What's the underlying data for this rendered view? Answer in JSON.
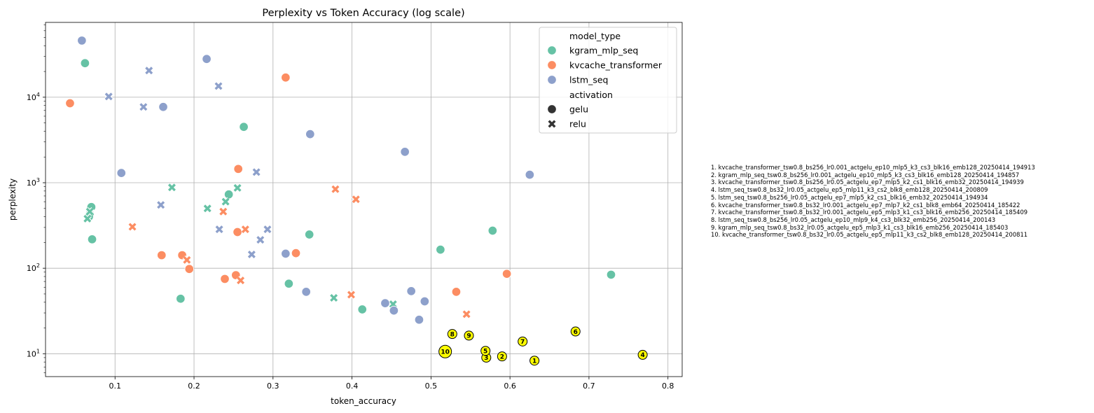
{
  "chart_data": {
    "type": "scatter",
    "title": "Perplexity vs Token Accuracy (log scale)",
    "xlabel": "token_accuracy",
    "ylabel": "perplexity",
    "xlim": [
      0.012,
      0.818
    ],
    "ylim": [
      5.4,
      75000
    ],
    "yscale": "log",
    "grid": true,
    "x_ticks": [
      {
        "v": 0.1,
        "label": "0.1"
      },
      {
        "v": 0.2,
        "label": "0.2"
      },
      {
        "v": 0.3,
        "label": "0.3"
      },
      {
        "v": 0.4,
        "label": "0.4"
      },
      {
        "v": 0.5,
        "label": "0.5"
      },
      {
        "v": 0.6,
        "label": "0.6"
      },
      {
        "v": 0.7,
        "label": "0.7"
      },
      {
        "v": 0.8,
        "label": "0.8"
      }
    ],
    "y_ticks": [
      {
        "v": 10,
        "base": "10",
        "exp": "1"
      },
      {
        "v": 100,
        "base": "10",
        "exp": "2"
      },
      {
        "v": 1000,
        "base": "10",
        "exp": "3"
      },
      {
        "v": 10000,
        "base": "10",
        "exp": "4"
      }
    ],
    "legend": {
      "placement": "top-right",
      "hue_title": "model_type",
      "style_title": "activation",
      "hue_entries": [
        {
          "label": "kgram_mlp_seq",
          "color": "#66c2a5"
        },
        {
          "label": "kvcache_transformer",
          "color": "#fc8d62"
        },
        {
          "label": "lstm_seq",
          "color": "#8da0cb"
        }
      ],
      "style_entries": [
        {
          "label": "gelu",
          "marker": "circle"
        },
        {
          "label": "relu",
          "marker": "x"
        }
      ]
    },
    "series": [
      {
        "model_type": "kgram_mlp_seq",
        "activation": "gelu",
        "color": "#66c2a5",
        "marker": "circle",
        "points": [
          [
            0.062,
            25000
          ],
          [
            0.07,
            520
          ],
          [
            0.068,
            430
          ],
          [
            0.067,
            400
          ],
          [
            0.071,
            218
          ],
          [
            0.183,
            44
          ],
          [
            0.244,
            730
          ],
          [
            0.263,
            4500
          ],
          [
            0.32,
            66
          ],
          [
            0.346,
            248
          ],
          [
            0.413,
            33
          ],
          [
            0.512,
            165
          ],
          [
            0.578,
            275
          ],
          [
            0.728,
            84
          ]
        ]
      },
      {
        "model_type": "kgram_mlp_seq",
        "activation": "relu",
        "color": "#66c2a5",
        "marker": "x",
        "points": [
          [
            0.065,
            380
          ],
          [
            0.068,
            460
          ],
          [
            0.172,
            880
          ],
          [
            0.217,
            500
          ],
          [
            0.24,
            600
          ],
          [
            0.255,
            870
          ],
          [
            0.377,
            45
          ],
          [
            0.452,
            38
          ]
        ]
      },
      {
        "model_type": "kvcache_transformer",
        "activation": "gelu",
        "color": "#fc8d62",
        "marker": "circle",
        "points": [
          [
            0.043,
            8500
          ],
          [
            0.159,
            142
          ],
          [
            0.185,
            142
          ],
          [
            0.194,
            98
          ],
          [
            0.239,
            75
          ],
          [
            0.253,
            83
          ],
          [
            0.255,
            265
          ],
          [
            0.256,
            1450
          ],
          [
            0.316,
            17000
          ],
          [
            0.329,
            150
          ],
          [
            0.532,
            53
          ],
          [
            0.596,
            86
          ]
        ]
      },
      {
        "model_type": "kvcache_transformer",
        "activation": "relu",
        "color": "#fc8d62",
        "marker": "x",
        "points": [
          [
            0.122,
            305
          ],
          [
            0.191,
            125
          ],
          [
            0.237,
            460
          ],
          [
            0.259,
            72
          ],
          [
            0.265,
            285
          ],
          [
            0.379,
            840
          ],
          [
            0.399,
            49
          ],
          [
            0.405,
            640
          ],
          [
            0.545,
            29
          ]
        ]
      },
      {
        "model_type": "lstm_seq",
        "activation": "gelu",
        "color": "#8da0cb",
        "marker": "circle",
        "points": [
          [
            0.058,
            46000
          ],
          [
            0.108,
            1300
          ],
          [
            0.161,
            7700
          ],
          [
            0.216,
            28000
          ],
          [
            0.316,
            148
          ],
          [
            0.342,
            53
          ],
          [
            0.347,
            3700
          ],
          [
            0.442,
            39
          ],
          [
            0.453,
            32
          ],
          [
            0.467,
            2300
          ],
          [
            0.475,
            54
          ],
          [
            0.485,
            25
          ],
          [
            0.492,
            41
          ],
          [
            0.625,
            1240
          ]
        ]
      },
      {
        "model_type": "lstm_seq",
        "activation": "relu",
        "color": "#8da0cb",
        "marker": "x",
        "points": [
          [
            0.092,
            10200
          ],
          [
            0.136,
            7700
          ],
          [
            0.143,
            20500
          ],
          [
            0.158,
            550
          ],
          [
            0.231,
            13500
          ],
          [
            0.232,
            285
          ],
          [
            0.273,
            145
          ],
          [
            0.279,
            1330
          ],
          [
            0.284,
            215
          ],
          [
            0.293,
            285
          ]
        ]
      }
    ],
    "highlights": [
      {
        "label": "1",
        "x": 0.631,
        "y": 8.3
      },
      {
        "label": "2",
        "x": 0.59,
        "y": 9.3
      },
      {
        "label": "3",
        "x": 0.57,
        "y": 9.0
      },
      {
        "label": "4",
        "x": 0.768,
        "y": 9.7
      },
      {
        "label": "5",
        "x": 0.569,
        "y": 10.8
      },
      {
        "label": "6",
        "x": 0.683,
        "y": 18.2
      },
      {
        "label": "7",
        "x": 0.616,
        "y": 13.9
      },
      {
        "label": "8",
        "x": 0.527,
        "y": 17.0
      },
      {
        "label": "9",
        "x": 0.548,
        "y": 16.3
      },
      {
        "label": "10",
        "x": 0.518,
        "y": 10.6
      }
    ],
    "highlight_color": "#ffff00",
    "annotations": [
      "1. kvcache_transformer_tsw0.8_bs256_lr0.001_actgelu_ep10_mlp5_k3_cs3_blk16_emb128_20250414_194913",
      "2. kgram_mlp_seq_tsw0.8_bs256_lr0.001_actgelu_ep10_mlp5_k3_cs3_blk16_emb128_20250414_194857",
      "3. kvcache_transformer_tsw0.8_bs256_lr0.05_actgelu_ep7_mlp5_k2_cs1_blk16_emb32_20250414_194939",
      "4. lstm_seq_tsw0.8_bs32_lr0.05_actgelu_ep5_mlp11_k3_cs2_blk8_emb128_20250414_200809",
      "5. lstm_seq_tsw0.8_bs256_lr0.05_actgelu_ep7_mlp5_k2_cs1_blk16_emb32_20250414_194934",
      "6. kvcache_transformer_tsw0.8_bs32_lr0.001_actgelu_ep7_mlp7_k2_cs1_blk8_emb64_20250414_185422",
      "7. kvcache_transformer_tsw0.8_bs32_lr0.001_actgelu_ep5_mlp3_k1_cs3_blk16_emb256_20250414_185409",
      "8. lstm_seq_tsw0.8_bs256_lr0.05_actgelu_ep10_mlp9_k4_cs3_blk32_emb256_20250414_200143",
      "9. kgram_mlp_seq_tsw0.8_bs32_lr0.05_actgelu_ep5_mlp3_k1_cs3_blk16_emb256_20250414_185403",
      "10. kvcache_transformer_tsw0.8_bs32_lr0.05_actgelu_ep5_mlp11_k3_cs2_blk8_emb128_20250414_200811"
    ]
  }
}
